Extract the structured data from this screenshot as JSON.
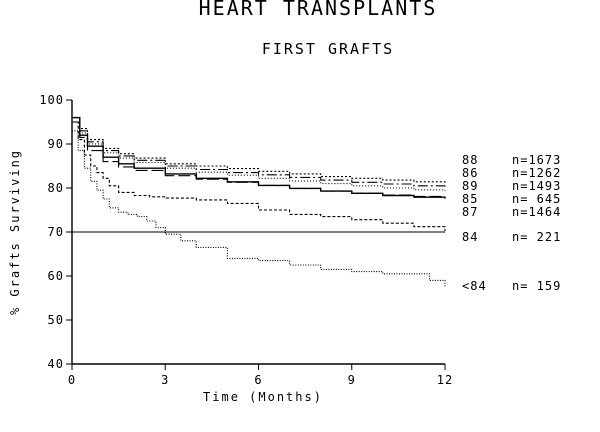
{
  "chart_data": {
    "type": "line",
    "title": "HEART TRANSPLANTS",
    "subtitle": "FIRST GRAFTS",
    "xlabel": "Time (Months)",
    "ylabel": "% Grafts Surviving",
    "xlim": [
      0,
      12
    ],
    "ylim": [
      40,
      100
    ],
    "xticks": [
      "0",
      "3",
      "6",
      "9",
      "12"
    ],
    "yticks": [
      "40",
      "50",
      "60",
      "70",
      "80",
      "90",
      "100"
    ],
    "grid": false,
    "legend_position": "right",
    "reference_line": 70,
    "series": [
      {
        "name": "88",
        "n": "n=1673",
        "dash": "2,2",
        "x": [
          0,
          0.25,
          0.5,
          1,
          1.5,
          2,
          3,
          4,
          5,
          6,
          7,
          8,
          9,
          10,
          11,
          12
        ],
        "values": [
          96,
          93.5,
          91,
          89,
          87.8,
          86.8,
          85.5,
          85,
          84.4,
          83.8,
          83.2,
          82.6,
          82.2,
          81.8,
          81.4,
          81.2
        ]
      },
      {
        "name": "86",
        "n": "n=1262",
        "dash": "10,3,2,3",
        "x": [
          0,
          0.25,
          0.5,
          1,
          1.5,
          2,
          3,
          4,
          5,
          6,
          7,
          8,
          9,
          10,
          11,
          12
        ],
        "values": [
          96,
          93,
          90.5,
          88.5,
          87.3,
          86.3,
          85,
          84.2,
          83.5,
          83,
          82.4,
          81.8,
          81.3,
          80.9,
          80.5,
          80.3
        ]
      },
      {
        "name": "89",
        "n": "n=1493",
        "dash": "1,2",
        "x": [
          0,
          0.25,
          0.5,
          1,
          1.5,
          2,
          3,
          4,
          5,
          6,
          7,
          8,
          9,
          10,
          11,
          12
        ],
        "values": [
          95,
          92.5,
          90,
          88,
          86.8,
          85.8,
          84.5,
          83.6,
          82.9,
          82.2,
          81.6,
          81,
          80.5,
          80,
          79.6,
          79.4
        ]
      },
      {
        "name": "85",
        "n": "n= 645",
        "dash": "12,4",
        "x": [
          0,
          0.25,
          0.5,
          1,
          1.5,
          2,
          3,
          4,
          5,
          6,
          7,
          8,
          9,
          10,
          11,
          12
        ],
        "values": [
          95,
          91.5,
          88.5,
          86,
          84.8,
          84,
          82.8,
          82,
          81.3,
          80.6,
          79.9,
          79.3,
          78.8,
          78.4,
          78.1,
          77.9
        ]
      },
      {
        "name": "87",
        "n": "n=1464",
        "dash": "",
        "x": [
          0,
          0.25,
          0.5,
          1,
          1.5,
          2,
          3,
          4,
          5,
          6,
          7,
          8,
          9,
          10,
          11,
          12
        ],
        "values": [
          96,
          92,
          89.5,
          87,
          85.5,
          84.5,
          83.2,
          82.2,
          81.4,
          80.6,
          79.9,
          79.3,
          78.8,
          78.3,
          77.9,
          77.6
        ]
      },
      {
        "name": "84",
        "n": "n= 221",
        "dash": "3,2",
        "x": [
          0,
          0.2,
          0.4,
          0.6,
          0.8,
          1,
          1.2,
          1.5,
          2,
          2.5,
          3,
          4,
          5,
          6,
          7,
          8,
          9,
          10,
          11,
          12
        ],
        "values": [
          95,
          91,
          87.5,
          85,
          83.5,
          82.2,
          80.5,
          79,
          78.3,
          78,
          77.7,
          77.3,
          76.5,
          75,
          74,
          73.5,
          72.8,
          72,
          71.2,
          70.2
        ]
      },
      {
        "name": "<84",
        "n": "n= 159",
        "dash": "1,1.5",
        "x": [
          0,
          0.2,
          0.4,
          0.6,
          0.8,
          1,
          1.2,
          1.5,
          1.8,
          2.1,
          2.4,
          2.7,
          3,
          3.5,
          4,
          5,
          6,
          7,
          8,
          9,
          10,
          11,
          11.5,
          12
        ],
        "values": [
          93,
          88.5,
          84.5,
          81.5,
          79.5,
          77.5,
          75.5,
          74.5,
          74,
          73.5,
          72.5,
          71,
          69.5,
          68,
          66.5,
          64,
          63.5,
          62.5,
          61.5,
          61,
          60.5,
          60.5,
          59,
          57.5
        ]
      }
    ]
  }
}
